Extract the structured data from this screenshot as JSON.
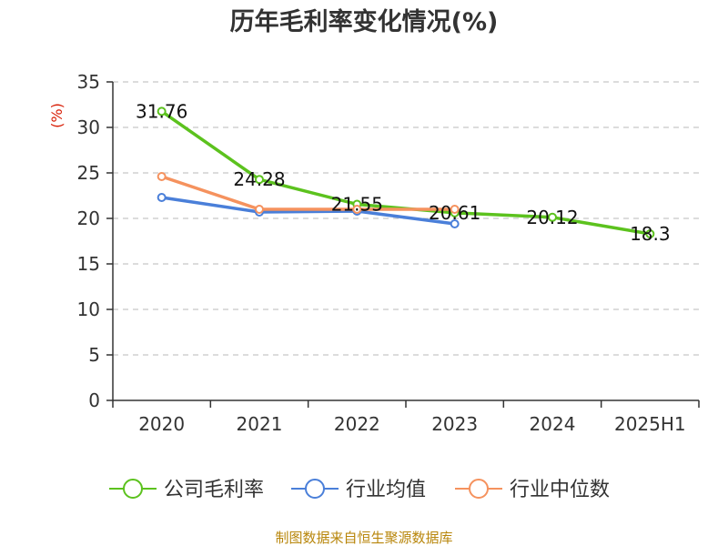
{
  "chart_data": {
    "type": "line",
    "title": "历年毛利率变化情况(%)",
    "ylabel": "(%)",
    "xlabel": "",
    "categories": [
      "2020",
      "2021",
      "2022",
      "2023",
      "2024",
      "2025H1"
    ],
    "y_ticks": [
      "0",
      "5",
      "10",
      "15",
      "20",
      "25",
      "30",
      "35"
    ],
    "ylim": [
      0,
      35
    ],
    "grid": true,
    "legend_position": "bottom",
    "series": [
      {
        "name": "公司毛利率",
        "color": "#5cc21e",
        "values": [
          31.76,
          24.28,
          21.55,
          20.61,
          20.12,
          18.3
        ],
        "labels": [
          "31.76",
          "24.28",
          "21.55",
          "20.61",
          "20.12",
          "18.3"
        ]
      },
      {
        "name": "行业均值",
        "color": "#4a7fd9",
        "values": [
          22.3,
          20.7,
          20.8,
          19.4,
          null,
          null
        ]
      },
      {
        "name": "行业中位数",
        "color": "#f5925e",
        "values": [
          24.6,
          21.0,
          21.0,
          21.0,
          null,
          null
        ]
      }
    ]
  },
  "source_text": "制图数据来自恒生聚源数据库"
}
